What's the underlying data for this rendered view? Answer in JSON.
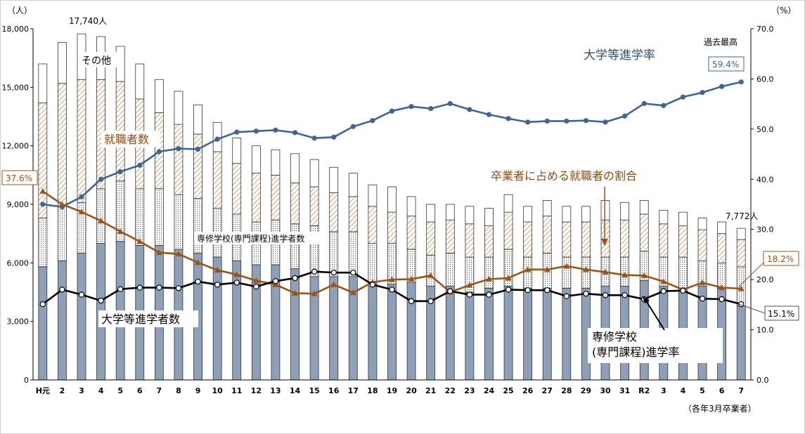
{
  "chart_data": {
    "type": "bar+line",
    "categories": [
      "H元",
      "2",
      "3",
      "4",
      "5",
      "6",
      "7",
      "8",
      "9",
      "10",
      "11",
      "12",
      "13",
      "14",
      "15",
      "16",
      "17",
      "18",
      "19",
      "20",
      "21",
      "22",
      "23",
      "24",
      "25",
      "26",
      "27",
      "28",
      "29",
      "30",
      "31",
      "R2",
      "3",
      "4",
      "5",
      "6",
      "7"
    ],
    "left_axis": {
      "unit": "（人）",
      "min": 0,
      "max": 18000,
      "ticks": [
        "0",
        "3,000",
        "6,000",
        "9,000",
        "12,000",
        "15,000",
        "18,000"
      ]
    },
    "right_axis": {
      "unit": "（%）",
      "min": 0,
      "max": 70,
      "ticks": [
        "0.0",
        "10.0",
        "20.0",
        "30.0",
        "40.0",
        "50.0",
        "60.0",
        "70.0"
      ]
    },
    "bar_series": [
      {
        "name": "大学等進学者数",
        "color": "#8ea0b8",
        "values": [
          5800,
          6100,
          6500,
          7000,
          7100,
          6900,
          6900,
          6700,
          6500,
          6300,
          6100,
          5900,
          5900,
          5700,
          5300,
          5300,
          5300,
          5000,
          4900,
          5000,
          4800,
          4800,
          4500,
          4700,
          4800,
          4700,
          4700,
          4700,
          4700,
          4800,
          4800,
          5100,
          4800,
          4700,
          4800,
          4700,
          3800
        ]
      },
      {
        "name": "専修学校(専門課程)進学者数",
        "color": "#d9d9d9",
        "values": [
          2500,
          2800,
          2600,
          2800,
          3100,
          2900,
          2900,
          2800,
          2800,
          2500,
          2400,
          2200,
          2300,
          2300,
          2600,
          2300,
          2300,
          2000,
          2100,
          1700,
          1600,
          1700,
          1800,
          1600,
          1900,
          1600,
          1800,
          1600,
          1600,
          1500,
          1500,
          1500,
          1500,
          1600,
          1300,
          1300,
          2000
        ]
      },
      {
        "name": "就職者数",
        "color": "#c99a6a",
        "values": [
          5900,
          6300,
          6300,
          5600,
          5100,
          4600,
          3900,
          3600,
          3300,
          2900,
          2600,
          2500,
          2300,
          2100,
          2000,
          2000,
          1800,
          1900,
          1600,
          1700,
          1700,
          1700,
          1700,
          1600,
          1900,
          1800,
          1900,
          1800,
          1800,
          1900,
          1900,
          1900,
          1700,
          1600,
          1600,
          1500,
          1400
        ]
      },
      {
        "name": "その他",
        "color": "#ffffff",
        "values": [
          2000,
          2100,
          2340,
          2200,
          1800,
          1800,
          1700,
          1700,
          1500,
          1500,
          1300,
          1400,
          1300,
          1500,
          1400,
          1300,
          1200,
          1100,
          1300,
          1000,
          900,
          800,
          900,
          900,
          900,
          800,
          800,
          800,
          800,
          1000,
          900,
          700,
          700,
          700,
          600,
          600,
          572
        ]
      }
    ],
    "line_series": [
      {
        "name": "大学等進学率",
        "color": "#3f6592",
        "values": [
          35.0,
          34.5,
          36.5,
          40.0,
          41.5,
          42.8,
          45.5,
          46.1,
          46.0,
          48.0,
          49.4,
          49.6,
          49.8,
          49.3,
          48.2,
          48.4,
          50.5,
          51.7,
          53.6,
          54.5,
          54.1,
          55.1,
          53.9,
          52.9,
          52.1,
          51.4,
          51.6,
          51.6,
          51.7,
          51.4,
          52.6,
          55.1,
          54.7,
          56.4,
          57.3,
          58.5,
          59.4
        ]
      },
      {
        "name": "卒業者に占める就職者の割合",
        "color": "#9a5418",
        "values": [
          37.6,
          35.0,
          33.5,
          31.7,
          29.6,
          27.6,
          25.4,
          25.1,
          23.4,
          21.9,
          21.0,
          19.8,
          19.0,
          17.3,
          17.2,
          19.0,
          17.4,
          19.5,
          20.0,
          20.1,
          20.8,
          17.5,
          18.9,
          20.1,
          20.3,
          22.0,
          22.0,
          22.7,
          22.0,
          21.5,
          20.9,
          20.8,
          19.6,
          18.0,
          19.4,
          18.4,
          18.2
        ]
      },
      {
        "name": "専修学校(専門課程)進学率",
        "color": "#000000",
        "values": [
          15.1,
          18.0,
          17.0,
          15.8,
          18.1,
          18.4,
          18.4,
          18.3,
          19.6,
          19.0,
          19.4,
          18.6,
          19.7,
          20.3,
          21.6,
          21.4,
          21.4,
          19.0,
          18.0,
          15.7,
          15.7,
          17.7,
          17.0,
          17.0,
          18.0,
          17.9,
          17.9,
          16.7,
          17.2,
          16.9,
          16.9,
          16.1,
          17.7,
          17.8,
          16.2,
          16.1,
          15.1
        ]
      }
    ],
    "annotations": {
      "max_total": "17,740人",
      "last_total": "7,772人",
      "label_other": "その他",
      "label_employed": "就職者数",
      "label_vocational_count": "専修学校(専門課程)進学者数",
      "label_univ_count": "大学等進学者数",
      "label_univ_rate": "大学等進学率",
      "label_past_max": "過去最高",
      "label_univ_rate_last": "59.4%",
      "label_emp_rate_title": "卒業者に占める就職者の割合",
      "label_emp_rate_first": "37.6%",
      "label_emp_rate_last": "18.2%",
      "label_voc_rate_line1": "専修学校",
      "label_voc_rate_line2": "(専門課程)進学率",
      "label_voc_rate_last": "15.1%",
      "footnote": "（各年3月卒業者）"
    }
  }
}
